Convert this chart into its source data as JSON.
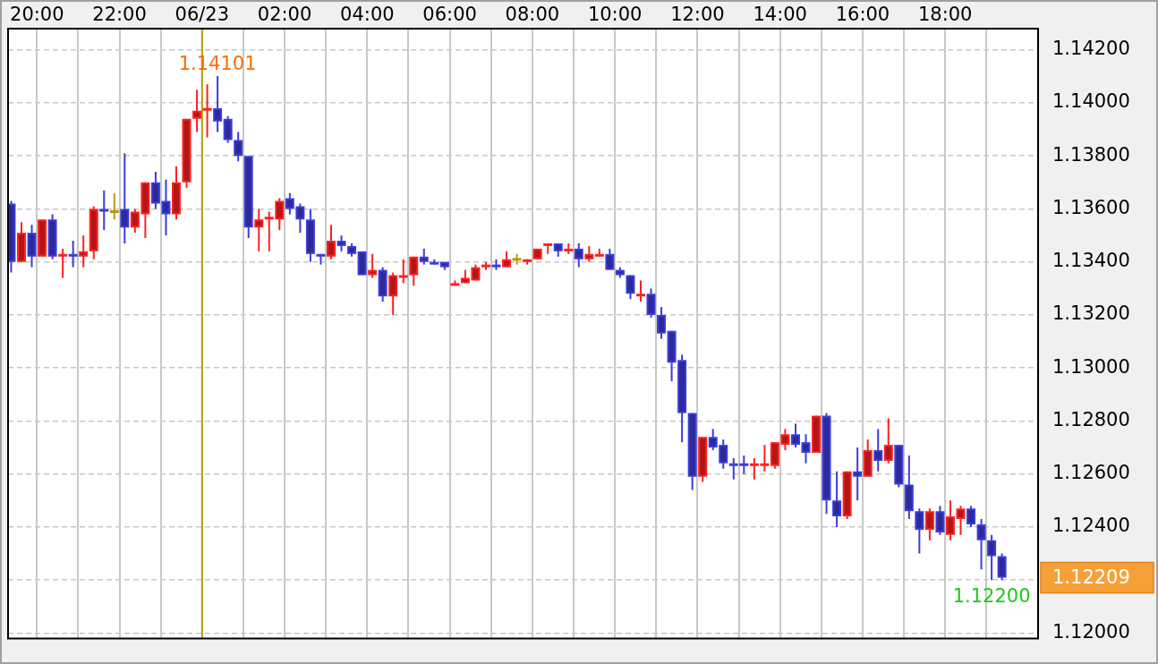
{
  "chart_data": {
    "type": "candlestick",
    "x": [
      "--06-22T19:22:30",
      "--06-22T19:37:30",
      "--06-22T19:52:30",
      "--06-22T20:07:30",
      "--06-22T20:22:30",
      "--06-22T20:37:30",
      "--06-22T20:52:30",
      "--06-22T21:07:30",
      "--06-22T21:22:30",
      "--06-22T21:37:30",
      "--06-22T21:52:30",
      "--06-22T22:07:30",
      "--06-22T22:22:30",
      "--06-22T22:37:30",
      "--06-22T22:52:30",
      "--06-22T23:07:30",
      "--06-22T23:22:30",
      "--06-22T23:37:30",
      "--06-22T23:52:30",
      "--06-23T00:07:30",
      "--06-23T00:22:30",
      "--06-23T00:37:30",
      "--06-23T00:52:30",
      "--06-23T01:07:30",
      "--06-23T01:22:30",
      "--06-23T01:37:30",
      "--06-23T01:52:30",
      "--06-23T02:07:30",
      "--06-23T02:22:30",
      "--06-23T02:37:30",
      "--06-23T02:52:30",
      "--06-23T03:07:30",
      "--06-23T03:22:30",
      "--06-23T03:37:30",
      "--06-23T03:52:30",
      "--06-23T04:07:30",
      "--06-23T04:22:30",
      "--06-23T04:37:30",
      "--06-23T04:52:30",
      "--06-23T05:07:30",
      "--06-23T05:22:30",
      "--06-23T05:37:30",
      "--06-23T05:52:30",
      "--06-23T06:07:30",
      "--06-23T06:22:30",
      "--06-23T06:37:30",
      "--06-23T06:52:30",
      "--06-23T07:07:30",
      "--06-23T07:22:30",
      "--06-23T07:37:30",
      "--06-23T07:52:30",
      "--06-23T08:07:30",
      "--06-23T08:22:30",
      "--06-23T08:37:30",
      "--06-23T08:52:30",
      "--06-23T09:07:30",
      "--06-23T09:22:30",
      "--06-23T09:37:30",
      "--06-23T09:52:30",
      "--06-23T10:07:30",
      "--06-23T10:22:30",
      "--06-23T10:37:30",
      "--06-23T10:52:30",
      "--06-23T11:07:30",
      "--06-23T11:22:30",
      "--06-23T11:37:30",
      "--06-23T11:52:30",
      "--06-23T12:07:30",
      "--06-23T12:22:30",
      "--06-23T12:37:30",
      "--06-23T12:52:30",
      "--06-23T13:07:30",
      "--06-23T13:22:30",
      "--06-23T13:37:30",
      "--06-23T13:52:30",
      "--06-23T14:07:30",
      "--06-23T14:22:30",
      "--06-23T14:37:30",
      "--06-23T14:52:30",
      "--06-23T15:07:30",
      "--06-23T15:22:30",
      "--06-23T15:37:30",
      "--06-23T15:52:30",
      "--06-23T16:07:30",
      "--06-23T16:22:30",
      "--06-23T16:37:30",
      "--06-23T16:52:30",
      "--06-23T17:07:30",
      "--06-23T17:22:30",
      "--06-23T17:37:30",
      "--06-23T17:52:30",
      "--06-23T18:07:30",
      "--06-23T18:22:30",
      "--06-23T18:37:30",
      "--06-23T18:52:30",
      "--06-23T19:07:30",
      "--06-23T19:22:30"
    ],
    "ohlc": [
      [
        1.1362,
        1.1363,
        1.1336,
        1.134
      ],
      [
        1.134,
        1.1355,
        1.134,
        1.1351
      ],
      [
        1.1351,
        1.1354,
        1.1338,
        1.1342
      ],
      [
        1.1342,
        1.1356,
        1.1342,
        1.1356
      ],
      [
        1.1356,
        1.1358,
        1.1341,
        1.1342
      ],
      [
        1.1342,
        1.1345,
        1.1334,
        1.1343
      ],
      [
        1.1343,
        1.1348,
        1.1338,
        1.1342
      ],
      [
        1.1342,
        1.135,
        1.1338,
        1.1344
      ],
      [
        1.1344,
        1.1361,
        1.1341,
        1.136
      ],
      [
        1.136,
        1.1367,
        1.1352,
        1.1359
      ],
      [
        1.1359,
        1.1366,
        1.1356,
        1.1359
      ],
      [
        1.136,
        1.1381,
        1.1347,
        1.1353
      ],
      [
        1.1353,
        1.136,
        1.1351,
        1.1359
      ],
      [
        1.1358,
        1.137,
        1.1349,
        1.137
      ],
      [
        1.137,
        1.1374,
        1.136,
        1.1362
      ],
      [
        1.1363,
        1.1371,
        1.135,
        1.1358
      ],
      [
        1.1358,
        1.1376,
        1.1356,
        1.137
      ],
      [
        1.137,
        1.1394,
        1.1368,
        1.1394
      ],
      [
        1.1394,
        1.1405,
        1.1389,
        1.1397
      ],
      [
        1.1397,
        1.1407,
        1.1387,
        1.1398
      ],
      [
        1.1398,
        1.14101,
        1.1389,
        1.1393
      ],
      [
        1.1394,
        1.1395,
        1.1385,
        1.1386
      ],
      [
        1.1386,
        1.1389,
        1.1378,
        1.138
      ],
      [
        1.138,
        1.138,
        1.1349,
        1.1353
      ],
      [
        1.1353,
        1.136,
        1.1344,
        1.1356
      ],
      [
        1.1356,
        1.1359,
        1.1344,
        1.1357
      ],
      [
        1.1356,
        1.1364,
        1.1352,
        1.1363
      ],
      [
        1.1364,
        1.1366,
        1.1358,
        1.136
      ],
      [
        1.1361,
        1.1362,
        1.1351,
        1.1356
      ],
      [
        1.1356,
        1.136,
        1.134,
        1.1343
      ],
      [
        1.1343,
        1.1343,
        1.1339,
        1.1342
      ],
      [
        1.1342,
        1.1354,
        1.1341,
        1.1348
      ],
      [
        1.1348,
        1.135,
        1.1344,
        1.1346
      ],
      [
        1.1346,
        1.1347,
        1.1342,
        1.1343
      ],
      [
        1.1344,
        1.1344,
        1.1335,
        1.1335
      ],
      [
        1.1335,
        1.1343,
        1.1334,
        1.1337
      ],
      [
        1.1337,
        1.1338,
        1.1325,
        1.1327
      ],
      [
        1.1327,
        1.1336,
        1.132,
        1.1335
      ],
      [
        1.1334,
        1.1341,
        1.1332,
        1.1335
      ],
      [
        1.1335,
        1.1342,
        1.1331,
        1.1342
      ],
      [
        1.1342,
        1.1345,
        1.1339,
        1.134
      ],
      [
        1.134,
        1.1341,
        1.1339,
        1.1339
      ],
      [
        1.134,
        1.134,
        1.1337,
        1.1338
      ],
      [
        1.1331,
        1.1333,
        1.1331,
        1.1332
      ],
      [
        1.1332,
        1.1337,
        1.1332,
        1.1334
      ],
      [
        1.1333,
        1.1339,
        1.1333,
        1.1338
      ],
      [
        1.1338,
        1.134,
        1.1337,
        1.1339
      ],
      [
        1.1339,
        1.1341,
        1.1337,
        1.1338
      ],
      [
        1.1338,
        1.1344,
        1.1338,
        1.1341
      ],
      [
        1.1341,
        1.1343,
        1.1339,
        1.1341
      ],
      [
        1.134,
        1.1341,
        1.1339,
        1.1341
      ],
      [
        1.1341,
        1.1345,
        1.1341,
        1.1345
      ],
      [
        1.1346,
        1.1347,
        1.1343,
        1.1347
      ],
      [
        1.1347,
        1.1347,
        1.1342,
        1.1344
      ],
      [
        1.1344,
        1.1347,
        1.1343,
        1.1345
      ],
      [
        1.1345,
        1.1347,
        1.1338,
        1.1341
      ],
      [
        1.1341,
        1.1346,
        1.134,
        1.1343
      ],
      [
        1.1342,
        1.1345,
        1.1342,
        1.1343
      ],
      [
        1.1343,
        1.1345,
        1.1337,
        1.1337
      ],
      [
        1.1337,
        1.1338,
        1.1334,
        1.1335
      ],
      [
        1.1335,
        1.1335,
        1.1326,
        1.1328
      ],
      [
        1.1327,
        1.1333,
        1.1325,
        1.1328
      ],
      [
        1.1328,
        1.133,
        1.1319,
        1.132
      ],
      [
        1.132,
        1.1323,
        1.1311,
        1.1313
      ],
      [
        1.1314,
        1.1314,
        1.1295,
        1.1302
      ],
      [
        1.1303,
        1.1305,
        1.1272,
        1.1283
      ],
      [
        1.1283,
        1.1283,
        1.1254,
        1.1259
      ],
      [
        1.1259,
        1.1274,
        1.1257,
        1.1274
      ],
      [
        1.1274,
        1.1277,
        1.1269,
        1.127
      ],
      [
        1.1271,
        1.1273,
        1.1262,
        1.1264
      ],
      [
        1.1264,
        1.1266,
        1.1258,
        1.1263
      ],
      [
        1.1264,
        1.1267,
        1.126,
        1.1263
      ],
      [
        1.1263,
        1.1266,
        1.1258,
        1.1264
      ],
      [
        1.1263,
        1.1271,
        1.1261,
        1.1264
      ],
      [
        1.1263,
        1.1272,
        1.1262,
        1.1272
      ],
      [
        1.1271,
        1.1277,
        1.1269,
        1.1275
      ],
      [
        1.1275,
        1.1279,
        1.127,
        1.1271
      ],
      [
        1.1272,
        1.1275,
        1.1264,
        1.1268
      ],
      [
        1.1268,
        1.1282,
        1.1268,
        1.1282
      ],
      [
        1.1282,
        1.1283,
        1.1245,
        1.125
      ],
      [
        1.125,
        1.1261,
        1.124,
        1.1244
      ],
      [
        1.1244,
        1.1261,
        1.1243,
        1.1261
      ],
      [
        1.1261,
        1.127,
        1.125,
        1.1259
      ],
      [
        1.1259,
        1.1273,
        1.1259,
        1.1269
      ],
      [
        1.1269,
        1.1277,
        1.1261,
        1.1265
      ],
      [
        1.1265,
        1.1281,
        1.1264,
        1.1271
      ],
      [
        1.1271,
        1.1271,
        1.1255,
        1.1256
      ],
      [
        1.1256,
        1.1267,
        1.1243,
        1.1246
      ],
      [
        1.1246,
        1.1247,
        1.123,
        1.1239
      ],
      [
        1.1239,
        1.1247,
        1.1235,
        1.1246
      ],
      [
        1.1246,
        1.1248,
        1.1237,
        1.1238
      ],
      [
        1.1237,
        1.125,
        1.1235,
        1.1244
      ],
      [
        1.1243,
        1.1248,
        1.1237,
        1.1247
      ],
      [
        1.1247,
        1.1248,
        1.124,
        1.1241
      ],
      [
        1.1241,
        1.1243,
        1.1224,
        1.1235
      ],
      [
        1.1235,
        1.1237,
        1.122,
        1.1229
      ],
      [
        1.1229,
        1.123,
        1.122,
        1.12209
      ]
    ],
    "colors": [
      "#3c3cdc",
      "#ff2020",
      "#3c3cdc",
      "#ff2020",
      "#3c3cdc",
      "#ff2020",
      "#3c3cdc",
      "#ff2020",
      "#ff2020",
      "#3c3cdc",
      "#b89a10",
      "#3c3cdc",
      "#ff2020",
      "#ff2020",
      "#3c3cdc",
      "#3c3cdc",
      "#ff2020",
      "#ff2020",
      "#ff2020",
      "#ff2020",
      "#3c3cdc",
      "#3c3cdc",
      "#3c3cdc",
      "#3c3cdc",
      "#ff2020",
      "#ff2020",
      "#ff2020",
      "#3c3cdc",
      "#3c3cdc",
      "#3c3cdc",
      "#3c3cdc",
      "#ff2020",
      "#3c3cdc",
      "#3c3cdc",
      "#3c3cdc",
      "#ff2020",
      "#3c3cdc",
      "#ff2020",
      "#ff2020",
      "#ff2020",
      "#3c3cdc",
      "#3c3cdc",
      "#3c3cdc",
      "#ff2020",
      "#ff2020",
      "#ff2020",
      "#ff2020",
      "#3c3cdc",
      "#ff2020",
      "#b89a10",
      "#ff2020",
      "#ff2020",
      "#ff2020",
      "#3c3cdc",
      "#ff2020",
      "#3c3cdc",
      "#ff2020",
      "#ff2020",
      "#3c3cdc",
      "#3c3cdc",
      "#3c3cdc",
      "#ff2020",
      "#3c3cdc",
      "#3c3cdc",
      "#3c3cdc",
      "#3c3cdc",
      "#3c3cdc",
      "#ff2020",
      "#3c3cdc",
      "#3c3cdc",
      "#3c3cdc",
      "#3c3cdc",
      "#ff2020",
      "#ff2020",
      "#ff2020",
      "#ff2020",
      "#3c3cdc",
      "#3c3cdc",
      "#ff2020",
      "#3c3cdc",
      "#3c3cdc",
      "#ff2020",
      "#3c3cdc",
      "#ff2020",
      "#3c3cdc",
      "#ff2020",
      "#3c3cdc",
      "#3c3cdc",
      "#3c3cdc",
      "#ff2020",
      "#3c3cdc",
      "#ff2020",
      "#ff2020",
      "#3c3cdc",
      "#3c3cdc",
      "#3c3cdc",
      "#3c3cdc"
    ],
    "xlim": [
      "--06-22T19:18",
      "--06-23T20:15"
    ],
    "xticks": [
      {
        "value": "--06-22T20:00",
        "label": "20:00"
      },
      {
        "value": "--06-22T21:00",
        "label": null
      },
      {
        "value": "--06-22T22:00",
        "label": "22:00"
      },
      {
        "value": "--06-22T23:00",
        "label": null
      },
      {
        "value": "--06-23T00:00",
        "label": "06/23"
      },
      {
        "value": "--06-23T01:00",
        "label": null
      },
      {
        "value": "--06-23T02:00",
        "label": "02:00"
      },
      {
        "value": "--06-23T03:00",
        "label": null
      },
      {
        "value": "--06-23T04:00",
        "label": "04:00"
      },
      {
        "value": "--06-23T05:00",
        "label": null
      },
      {
        "value": "--06-23T06:00",
        "label": "06:00"
      },
      {
        "value": "--06-23T07:00",
        "label": null
      },
      {
        "value": "--06-23T08:00",
        "label": "08:00"
      },
      {
        "value": "--06-23T09:00",
        "label": null
      },
      {
        "value": "--06-23T10:00",
        "label": "10:00"
      },
      {
        "value": "--06-23T11:00",
        "label": null
      },
      {
        "value": "--06-23T12:00",
        "label": "12:00"
      },
      {
        "value": "--06-23T13:00",
        "label": null
      },
      {
        "value": "--06-23T14:00",
        "label": "14:00"
      },
      {
        "value": "--06-23T15:00",
        "label": null
      },
      {
        "value": "--06-23T16:00",
        "label": "16:00"
      },
      {
        "value": "--06-23T17:00",
        "label": null
      },
      {
        "value": "--06-23T18:00",
        "label": "18:00"
      },
      {
        "value": "--06-23T19:00",
        "label": null
      }
    ],
    "ylim": [
      1.1198,
      1.1428
    ],
    "yticks": [
      {
        "value": 1.12,
        "label": "1.12000"
      },
      {
        "value": 1.122,
        "label": null
      },
      {
        "value": 1.124,
        "label": "1.12400"
      },
      {
        "value": 1.126,
        "label": "1.12600"
      },
      {
        "value": 1.128,
        "label": "1.12800"
      },
      {
        "value": 1.13,
        "label": "1.13000"
      },
      {
        "value": 1.132,
        "label": "1.13200"
      },
      {
        "value": 1.134,
        "label": "1.13400"
      },
      {
        "value": 1.136,
        "label": "1.13600"
      },
      {
        "value": 1.138,
        "label": "1.13800"
      },
      {
        "value": 1.14,
        "label": "1.14000"
      },
      {
        "value": 1.142,
        "label": "1.14200"
      }
    ],
    "grid": true,
    "ref_lines": [
      {
        "axis": "x",
        "value": "--06-23T00:00",
        "color": "#b4a00a"
      }
    ],
    "annotations": [
      {
        "text": "1.14101",
        "x": "--06-23T00:22:30",
        "y": 1.14101
      },
      {
        "text": "1.12200",
        "x": "--06-23T19:07:30",
        "y": 1.122
      },
      "1.12209"
    ]
  }
}
